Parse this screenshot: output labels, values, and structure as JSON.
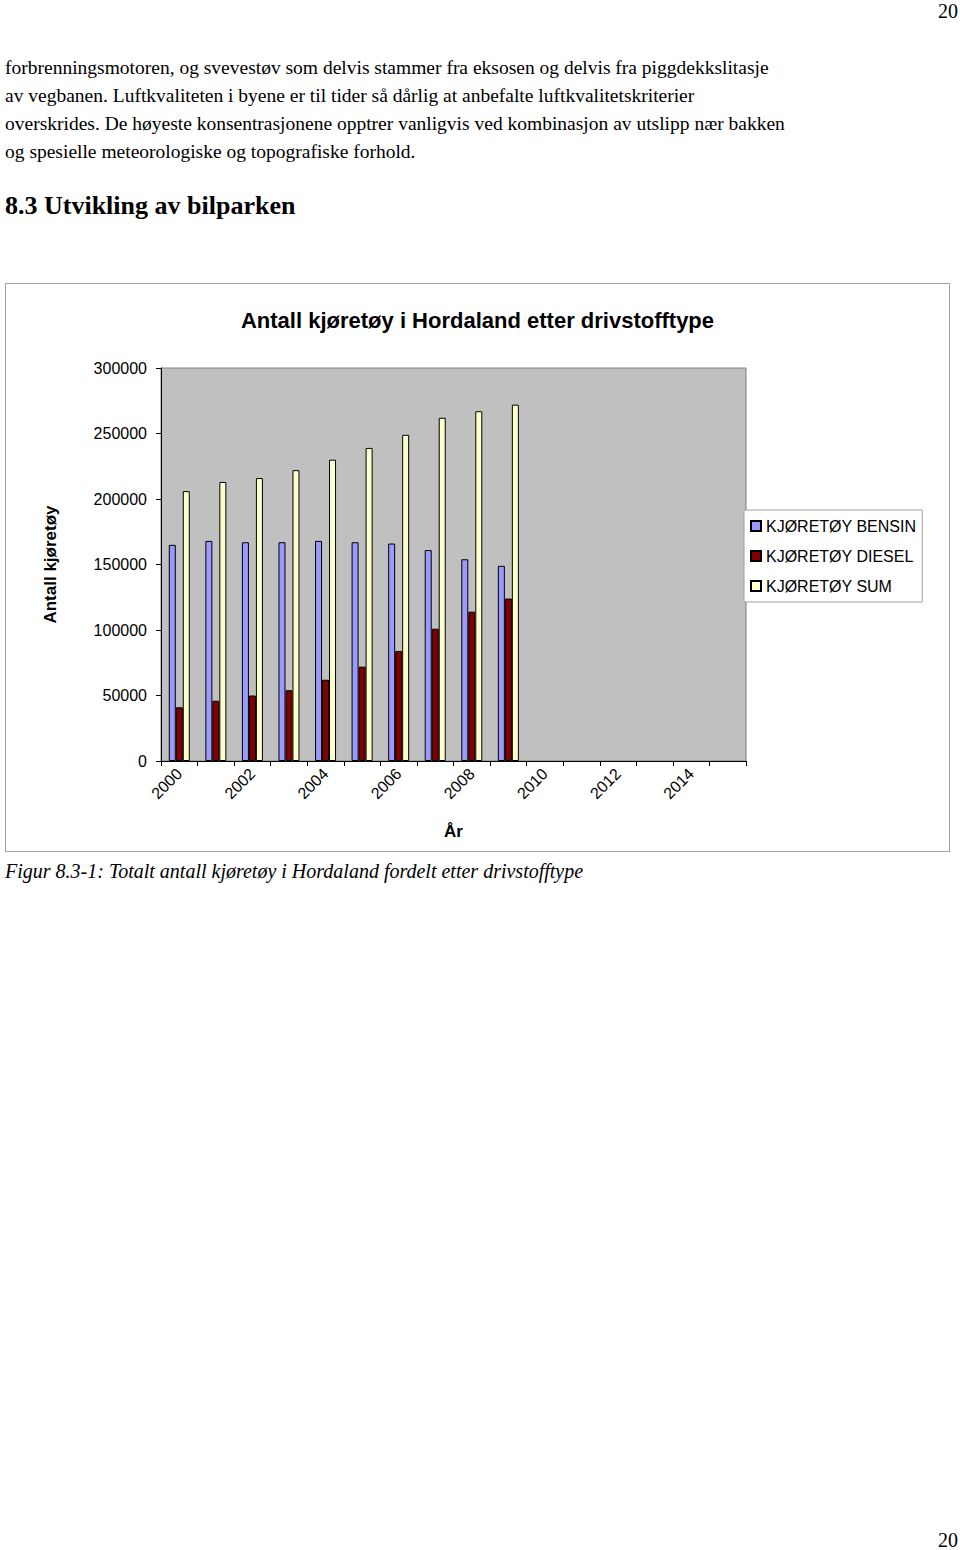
{
  "page": {
    "number_top": "20",
    "number_bottom": "20"
  },
  "paragraph_lines": [
    "forbrenningsmotoren, og svevestøv som delvis stammer fra eksosen og delvis fra piggdekkslitasje",
    "av vegbanen. Luftkvaliteten i byene er til tider så dårlig at anbefalte luftkvalitetskriterier",
    "overskrides. De høyeste konsentrasjonene opptrer vanligvis ved kombinasjon av utslipp nær bakken",
    "og spesielle meteorologiske og topografiske forhold."
  ],
  "heading": "8.3 Utvikling av bilparken",
  "chart_data": {
    "type": "bar",
    "title": "Antall kjøretøy i Hordaland etter drivstofftype",
    "x_label": "År",
    "y_label": "Antall kjøretøy",
    "categories": [
      "2000",
      null,
      "2002",
      null,
      "2004",
      null,
      "2006",
      null,
      "2008",
      null,
      "2010",
      null,
      "2012",
      null,
      "2014",
      null
    ],
    "series": [
      {
        "name": "KJØRETØY BENSIN",
        "color": "#9999ff",
        "values": [
          165000,
          168000,
          167000,
          167000,
          168000,
          167000,
          166000,
          161000,
          154000,
          149000,
          null,
          null,
          null,
          null,
          null,
          null
        ]
      },
      {
        "name": "KJØRETØY DIESEL",
        "color": "#800000",
        "values": [
          41000,
          46000,
          50000,
          54000,
          62000,
          72000,
          84000,
          101000,
          114000,
          124000,
          null,
          null,
          null,
          null,
          null,
          null
        ]
      },
      {
        "name": "KJØRETØY SUM",
        "color": "#ffffcc",
        "values": [
          206000,
          213000,
          216000,
          222000,
          230000,
          239000,
          249000,
          262000,
          267000,
          272000,
          null,
          null,
          null,
          null,
          null,
          null
        ]
      }
    ],
    "ylim": [
      0,
      300000
    ],
    "yticks": [
      0,
      50000,
      100000,
      150000,
      200000,
      250000,
      300000
    ],
    "grid": false,
    "legend": "right"
  },
  "caption": "Figur 8.3-1: Totalt antall kjøretøy i Hordaland fordelt etter drivstofftype"
}
